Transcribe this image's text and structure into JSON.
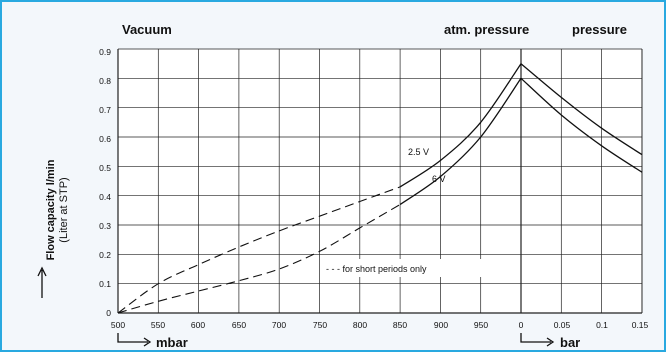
{
  "chart_data": {
    "type": "line",
    "headers": {
      "left": "Vacuum",
      "middle": "atm. pressure",
      "right": "pressure"
    },
    "y_axis": {
      "label_line1": "Flow capacity l/min",
      "label_line2": "(Liter at STP)",
      "ticks": [
        "0",
        "0.1",
        "0.2",
        "0.3",
        "0.4",
        "0.5",
        "0.6",
        "0.7",
        "0.8",
        "0.9"
      ],
      "ylim": [
        0,
        0.9
      ]
    },
    "x_axis": {
      "vacuum_ticks": [
        "500",
        "550",
        "600",
        "650",
        "700",
        "750",
        "800",
        "850",
        "900",
        "950",
        "0"
      ],
      "pressure_ticks": [
        "0.05",
        "0.1",
        "0.15"
      ],
      "vacuum_unit": "mbar",
      "pressure_unit": "bar"
    },
    "legend_note": "- - - for short periods only",
    "series": [
      {
        "name": "2.5 V",
        "vacuum_mbar_dashed": [
          [
            500,
            0.0
          ],
          [
            550,
            0.1
          ],
          [
            600,
            0.165
          ],
          [
            650,
            0.225
          ],
          [
            700,
            0.28
          ],
          [
            750,
            0.33
          ],
          [
            800,
            0.38
          ],
          [
            850,
            0.43
          ]
        ],
        "vacuum_mbar_solid": [
          [
            850,
            0.43
          ],
          [
            900,
            0.52
          ],
          [
            950,
            0.65
          ],
          [
            1000,
            0.85
          ]
        ],
        "pressure_bar": [
          [
            0,
            0.85
          ],
          [
            0.05,
            0.735
          ],
          [
            0.1,
            0.63
          ],
          [
            0.15,
            0.54
          ]
        ]
      },
      {
        "name": "6 V",
        "vacuum_mbar_dashed": [
          [
            500,
            0.0
          ],
          [
            550,
            0.04
          ],
          [
            600,
            0.075
          ],
          [
            650,
            0.11
          ],
          [
            700,
            0.15
          ],
          [
            750,
            0.21
          ],
          [
            800,
            0.29
          ],
          [
            850,
            0.37
          ]
        ],
        "vacuum_mbar_solid": [
          [
            850,
            0.37
          ],
          [
            900,
            0.465
          ],
          [
            950,
            0.6
          ],
          [
            1000,
            0.8
          ]
        ],
        "pressure_bar": [
          [
            0,
            0.8
          ],
          [
            0.05,
            0.675
          ],
          [
            0.1,
            0.57
          ],
          [
            0.15,
            0.48
          ]
        ]
      }
    ]
  }
}
